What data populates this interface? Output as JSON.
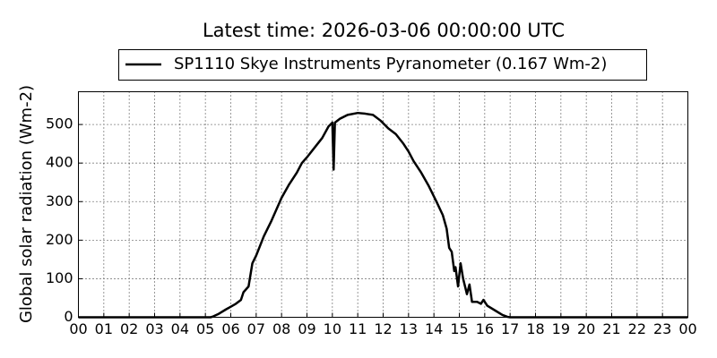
{
  "chart_data": {
    "type": "line",
    "title": "Latest time: 2026-03-06 00:00:00 UTC",
    "y_label": "Global solar radiation (Wm-2)",
    "x": [
      0,
      5.2,
      5.3,
      5.5,
      5.8,
      6.2,
      6.4,
      6.5,
      6.7,
      6.85,
      7.0,
      7.3,
      7.6,
      8.0,
      8.3,
      8.6,
      8.8,
      9.0,
      9.3,
      9.6,
      9.85,
      10.0,
      10.05,
      10.1,
      10.3,
      10.6,
      11.0,
      11.3,
      11.6,
      11.9,
      12.2,
      12.5,
      12.8,
      13.0,
      13.2,
      13.5,
      13.8,
      14.1,
      14.35,
      14.5,
      14.6,
      14.7,
      14.8,
      14.85,
      14.95,
      15.05,
      15.15,
      15.3,
      15.4,
      15.5,
      15.7,
      15.85,
      15.95,
      16.1,
      16.4,
      16.7,
      16.9,
      17.0,
      24
    ],
    "series": [
      {
        "name": "SP1110 Skye Instruments Pyranometer (0.167 Wm-2)",
        "color": "#000000",
        "values": [
          0,
          0,
          2,
          8,
          20,
          35,
          45,
          65,
          80,
          140,
          160,
          210,
          250,
          310,
          345,
          375,
          400,
          415,
          440,
          465,
          495,
          505,
          383,
          505,
          515,
          525,
          530,
          528,
          525,
          510,
          490,
          475,
          450,
          430,
          405,
          375,
          340,
          300,
          265,
          230,
          180,
          170,
          120,
          130,
          80,
          140,
          100,
          60,
          85,
          40,
          40,
          35,
          45,
          30,
          18,
          6,
          1,
          0,
          0
        ]
      }
    ],
    "xlim": [
      0,
      24
    ],
    "xticks": [
      {
        "value": 0,
        "label": "00"
      },
      {
        "value": 1,
        "label": "01"
      },
      {
        "value": 2,
        "label": "02"
      },
      {
        "value": 3,
        "label": "03"
      },
      {
        "value": 4,
        "label": "04"
      },
      {
        "value": 5,
        "label": "05"
      },
      {
        "value": 6,
        "label": "06"
      },
      {
        "value": 7,
        "label": "07"
      },
      {
        "value": 8,
        "label": "08"
      },
      {
        "value": 9,
        "label": "09"
      },
      10,
      11,
      12,
      13,
      14,
      15,
      16,
      17,
      18,
      19,
      20,
      21,
      22,
      23,
      {
        "value": 24,
        "label": "00"
      }
    ],
    "ylim": [
      0,
      585
    ],
    "yticks": [
      0,
      100,
      200,
      300,
      400,
      500
    ],
    "grid": true
  }
}
